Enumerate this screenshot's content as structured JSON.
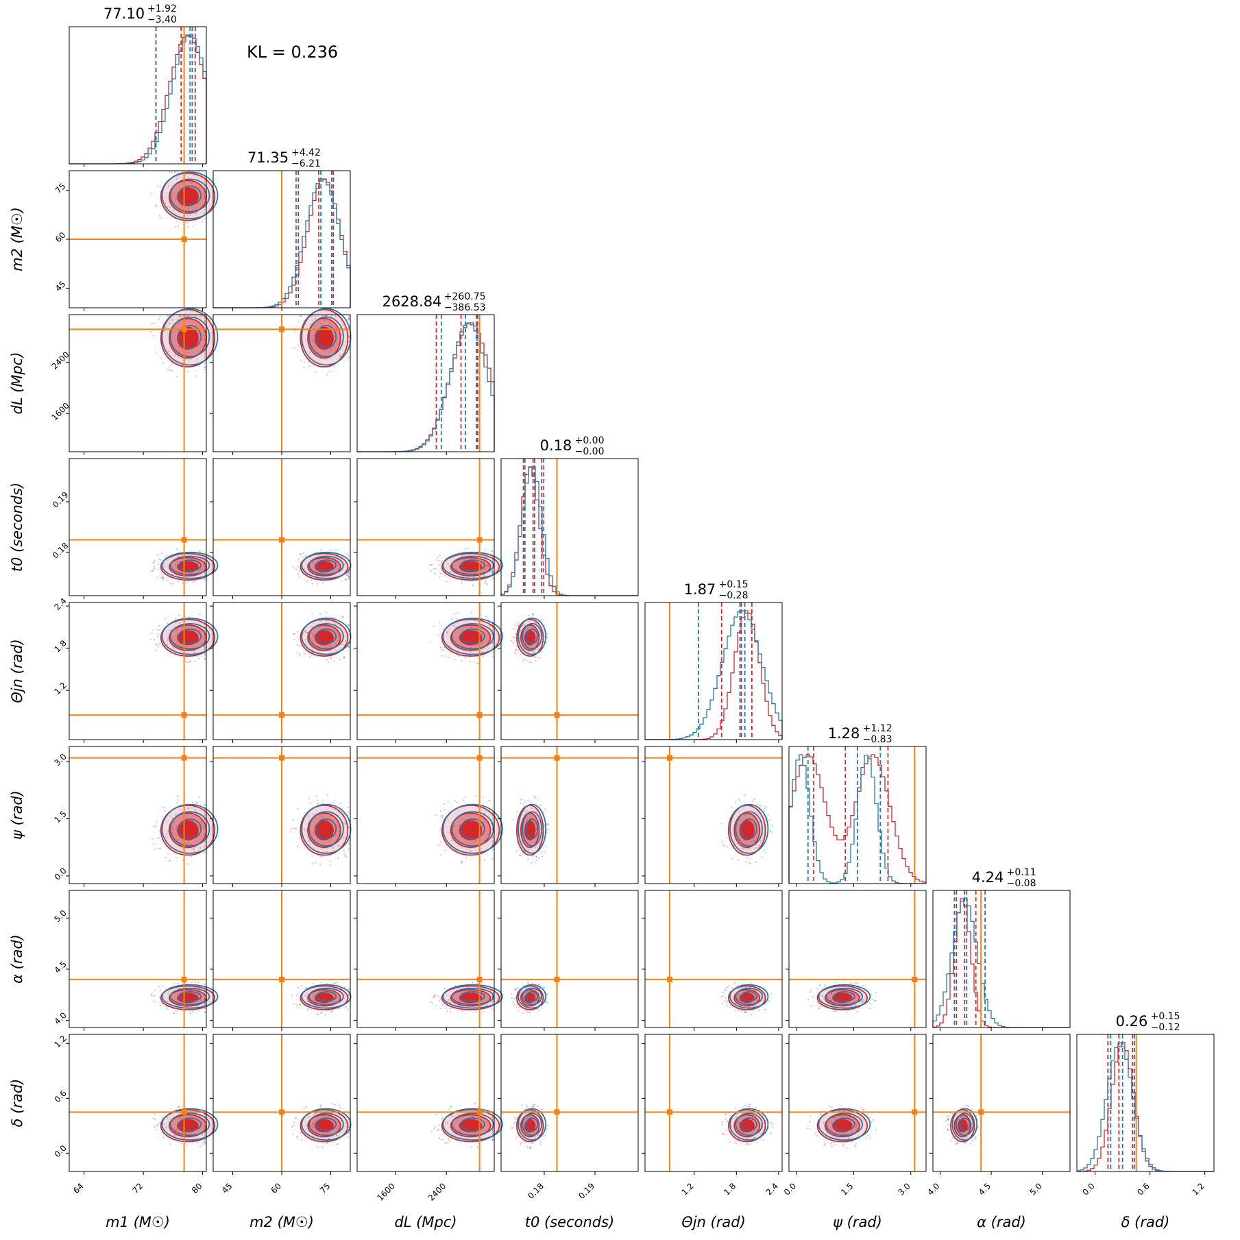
{
  "chart_data": {
    "type": "corner",
    "annotation": "KL = 0.236",
    "colors": {
      "red": "#d62728",
      "blue": "#1f77b4",
      "truth": "#ff7f0e"
    },
    "series": [
      {
        "color": "#d62728",
        "fill": true
      },
      {
        "color": "#1f77b4",
        "fill": false
      }
    ],
    "params": [
      {
        "label": "m1 (M☉)",
        "range": [
          62,
          80.5
        ],
        "ticks": [
          64,
          72,
          80
        ],
        "tick_labels": [
          "64",
          "72",
          "80"
        ],
        "truth": 77.5,
        "title": {
          "median": "77.10",
          "plus": "+1.92",
          "minus": "−3.40"
        },
        "quantiles": {
          "red": [
            73.7,
            77.1,
            79.0
          ],
          "blue": [
            73.7,
            78.3,
            78.6
          ]
        }
      },
      {
        "label": "m2 (M☉)",
        "range": [
          39,
          81
        ],
        "ticks": [
          45,
          60,
          75
        ],
        "tick_labels": [
          "45",
          "60",
          "75"
        ],
        "truth": 60,
        "title": {
          "median": "71.35",
          "plus": "+4.42",
          "minus": "−6.21"
        },
        "quantiles": {
          "red": [
            65.1,
            71.35,
            75.8
          ],
          "blue": [
            64.4,
            72.0,
            75.3
          ]
        }
      },
      {
        "label": "dL (Mpc)",
        "range": [
          1000,
          3150
        ],
        "ticks": [
          1600,
          2400
        ],
        "tick_labels": [
          "1600",
          "2400"
        ],
        "truth": 2920,
        "title": {
          "median": "2628.84",
          "plus": "+260.75",
          "minus": "−386.53"
        },
        "quantiles": {
          "red": [
            2242,
            2629,
            2890
          ],
          "blue": [
            2320,
            2700,
            2870
          ]
        }
      },
      {
        "label": "t0 (seconds)",
        "range": [
          0.1715,
          0.1985
        ],
        "ticks": [
          0.18,
          0.19
        ],
        "tick_labels": [
          "0.18",
          "0.19"
        ],
        "truth": 0.1825,
        "title": {
          "median": "0.18",
          "plus": "+0.00",
          "minus": "−0.00"
        },
        "quantiles": {
          "red": [
            0.1759,
            0.1778,
            0.1795
          ],
          "blue": [
            0.1762,
            0.1781,
            0.1799
          ]
        }
      },
      {
        "label": "Θjn (rad)",
        "range": [
          0.5,
          2.45
        ],
        "ticks": [
          1.2,
          1.8,
          2.4
        ],
        "tick_labels": [
          "1.2",
          "1.8",
          "2.4"
        ],
        "truth": 0.85,
        "title": {
          "median": "1.87",
          "plus": "+0.15",
          "minus": "−0.28"
        },
        "quantiles": {
          "red": [
            1.59,
            1.87,
            2.02
          ],
          "blue": [
            1.26,
            1.85,
            1.92
          ]
        }
      },
      {
        "label": "ψ (rad)",
        "range": [
          -0.2,
          3.4
        ],
        "ticks": [
          0.0,
          1.5,
          3.0
        ],
        "tick_labels": [
          "0.0",
          "1.5",
          "3.0"
        ],
        "truth": 3.1,
        "title": {
          "median": "1.28",
          "plus": "+1.12",
          "minus": "−0.83"
        },
        "quantiles": {
          "red": [
            0.45,
            1.28,
            2.4
          ],
          "blue": [
            0.3,
            1.6,
            2.2
          ]
        }
      },
      {
        "label": "α (rad)",
        "range": [
          3.93,
          5.27
        ],
        "ticks": [
          4.0,
          4.5,
          5.0
        ],
        "tick_labels": [
          "4.0",
          "4.5",
          "5.0"
        ],
        "truth": 4.4,
        "title": {
          "median": "4.24",
          "plus": "+0.11",
          "minus": "−0.08"
        },
        "quantiles": {
          "red": [
            4.16,
            4.24,
            4.35
          ],
          "blue": [
            4.14,
            4.26,
            4.44
          ]
        }
      },
      {
        "label": "δ (rad)",
        "range": [
          -0.2,
          1.3
        ],
        "ticks": [
          0.0,
          0.6,
          1.2
        ],
        "tick_labels": [
          "0.0",
          "0.6",
          "1.2"
        ],
        "truth": 0.45,
        "title": {
          "median": "0.26",
          "plus": "+0.15",
          "minus": "−0.12"
        },
        "quantiles": {
          "red": [
            0.14,
            0.26,
            0.41
          ],
          "blue": [
            0.17,
            0.3,
            0.43
          ]
        }
      }
    ],
    "marginals": [
      {
        "param": 0,
        "red": {
          "center": 78.0,
          "sigma": 2.5
        },
        "blue": {
          "center": 78.3,
          "sigma": 2.4
        }
      },
      {
        "param": 1,
        "red": {
          "center": 73.0,
          "sigma": 5.0
        },
        "blue": {
          "center": 72.5,
          "sigma": 5.2
        }
      },
      {
        "param": 2,
        "red": {
          "center": 2780,
          "sigma": 310
        },
        "blue": {
          "center": 2750,
          "sigma": 290
        }
      },
      {
        "param": 3,
        "red": {
          "center": 0.1772,
          "sigma": 0.0018
        },
        "blue": {
          "center": 0.1776,
          "sigma": 0.0019
        }
      },
      {
        "param": 4,
        "red": {
          "center": 1.95,
          "sigma": 0.18
        },
        "blue": {
          "center": 1.88,
          "sigma": 0.28
        }
      },
      {
        "param": 5,
        "red": {
          "peaks": [
            0.3,
            2.0
          ],
          "sigma": 0.45
        },
        "blue": {
          "peaks": [
            0.1,
            1.85
          ],
          "sigma": 0.25
        }
      },
      {
        "param": 6,
        "red": {
          "center": 4.22,
          "sigma": 0.08
        },
        "blue": {
          "center": 4.24,
          "sigma": 0.12
        }
      },
      {
        "param": 7,
        "red": {
          "center": 0.3,
          "sigma": 0.12
        },
        "blue": {
          "center": 0.27,
          "sigma": 0.14
        }
      }
    ]
  }
}
